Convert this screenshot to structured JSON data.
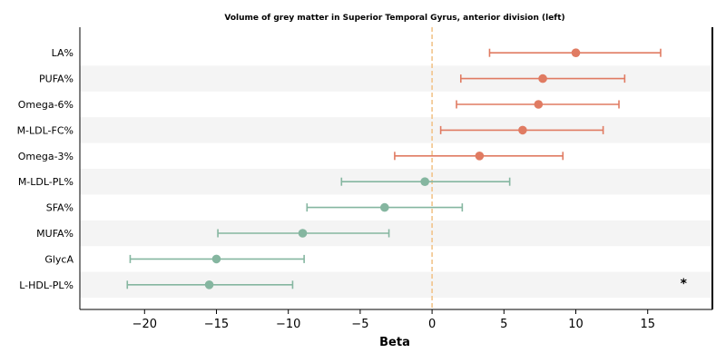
{
  "chart_data": {
    "type": "forest",
    "title": "Volume of grey matter in Superior Temporal Gyrus, anterior division (left)",
    "xlabel": "Beta",
    "ylabel": "",
    "xlim": [
      -24.5,
      19.5
    ],
    "xticks": [
      -20,
      -15,
      -10,
      -5,
      0,
      5,
      10,
      15
    ],
    "xtick_labels": [
      "−20",
      "−15",
      "−10",
      "−5",
      "0",
      "5",
      "10",
      "15"
    ],
    "reference_line": 0,
    "grid": false,
    "row_banding": true,
    "rows": [
      {
        "label": "LA%",
        "beta": 10.0,
        "ci_low": 4.0,
        "ci_high": 15.9,
        "group": "positive"
      },
      {
        "label": "PUFA%",
        "beta": 7.7,
        "ci_low": 2.0,
        "ci_high": 13.4,
        "group": "positive"
      },
      {
        "label": "Omega-6%",
        "beta": 7.4,
        "ci_low": 1.7,
        "ci_high": 13.0,
        "group": "positive"
      },
      {
        "label": "M-LDL-FC%",
        "beta": 6.3,
        "ci_low": 0.6,
        "ci_high": 11.9,
        "group": "positive"
      },
      {
        "label": "Omega-3%",
        "beta": 3.3,
        "ci_low": -2.6,
        "ci_high": 9.1,
        "group": "positive"
      },
      {
        "label": "M-LDL-PL%",
        "beta": -0.5,
        "ci_low": -6.3,
        "ci_high": 5.4,
        "group": "negative"
      },
      {
        "label": "SFA%",
        "beta": -3.3,
        "ci_low": -8.7,
        "ci_high": 2.1,
        "group": "negative"
      },
      {
        "label": "MUFA%",
        "beta": -9.0,
        "ci_low": -14.9,
        "ci_high": -3.0,
        "group": "negative"
      },
      {
        "label": "GlycA",
        "beta": -15.0,
        "ci_low": -21.0,
        "ci_high": -8.9,
        "group": "negative"
      },
      {
        "label": "L-HDL-PL%",
        "beta": -15.5,
        "ci_low": -21.2,
        "ci_high": -9.7,
        "group": "negative"
      }
    ],
    "annotations": [
      {
        "text": "*",
        "row": "L-HDL-PL%",
        "x": 17.5
      }
    ],
    "colors": {
      "positive": "#e07b62",
      "negative": "#85b6a0",
      "reference_line": "#f2c48a",
      "band": "#f4f4f4",
      "axes": "#000000"
    }
  }
}
